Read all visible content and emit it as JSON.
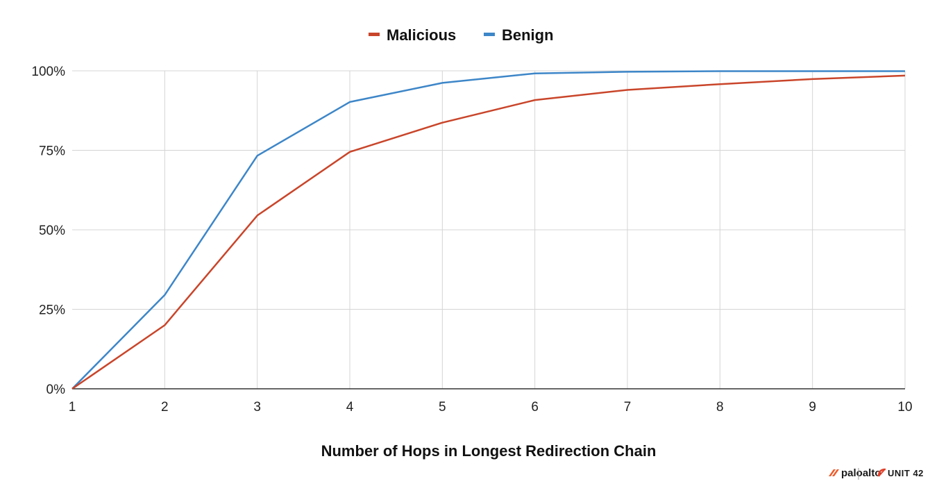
{
  "chart_data": {
    "type": "line",
    "title": "",
    "xlabel": "Number of Hops in Longest Redirection Chain",
    "ylabel": "",
    "x": [
      1,
      2,
      3,
      4,
      5,
      6,
      7,
      8,
      9,
      10
    ],
    "x_tick_labels": [
      "1",
      "2",
      "3",
      "4",
      "5",
      "6",
      "7",
      "8",
      "9",
      "10"
    ],
    "y_tick_labels": [
      "0%",
      "25%",
      "50%",
      "75%",
      "100%"
    ],
    "y_ticks": [
      0,
      25,
      50,
      75,
      100
    ],
    "ylim": [
      0,
      100
    ],
    "xlim": [
      1,
      10
    ],
    "grid": true,
    "legend_position": "top-center",
    "series": [
      {
        "name": "Malicious",
        "color": "#c9452a",
        "values": [
          0,
          20,
          54.5,
          74.5,
          83.7,
          90.8,
          94,
          95.8,
          97.4,
          98.5
        ]
      },
      {
        "name": "Benign",
        "color": "#3d86c8",
        "values": [
          0,
          29.5,
          73.3,
          90.2,
          96.2,
          99.2,
          99.7,
          99.9,
          99.9,
          99.9
        ]
      }
    ]
  },
  "branding": {
    "paloalto": "paloalto",
    "unit42": "UNIT 42"
  }
}
